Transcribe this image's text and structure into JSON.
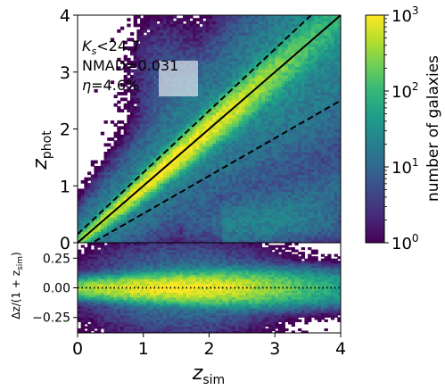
{
  "chart_data": [
    {
      "type": "heatmap",
      "panel": "top",
      "xlabel_main": "z",
      "xlabel_sub": "sim",
      "ylabel_main": "z",
      "ylabel_sub": "phot",
      "xlim": [
        0,
        4
      ],
      "ylim": [
        0,
        4
      ],
      "xticks": [
        "0",
        "1",
        "2",
        "3",
        "4"
      ],
      "yticks": [
        "0",
        "1",
        "2",
        "3",
        "4"
      ],
      "grid": false,
      "annotations": {
        "line1_main": "K",
        "line1_sub": "s",
        "line1_rest": "<24.7",
        "line2": "NMAD=0.031",
        "line3_main": "η",
        "line3_rest": "=4.6%"
      },
      "reference_lines": [
        {
          "kind": "one-to-one",
          "style": "solid",
          "points": [
            [
              0,
              0
            ],
            [
              4,
              4
            ]
          ]
        },
        {
          "kind": "upper-outlier-bound",
          "style": "dashed",
          "points": [
            [
              0,
              0.15
            ],
            [
              3.55,
              4
            ]
          ]
        },
        {
          "kind": "lower-outlier-bound",
          "style": "dashed",
          "points": [
            [
              0,
              -0.15
            ],
            [
              4,
              2.5
            ]
          ]
        }
      ]
    },
    {
      "type": "heatmap",
      "panel": "bottom",
      "ylabel_main": "Δz/(1 + z",
      "ylabel_sub": "sim",
      "ylabel_end": ")",
      "xlim": [
        0,
        4
      ],
      "ylim": [
        -0.38,
        0.38
      ],
      "xticks": [
        "0",
        "1",
        "2",
        "3",
        "4"
      ],
      "yticks": [
        "0.25",
        "0.00",
        "−0.25"
      ],
      "ytick_values": [
        0.25,
        0.0,
        -0.25
      ],
      "reference_lines": [
        {
          "kind": "zero",
          "style": "dotted",
          "points": [
            [
              0,
              0
            ],
            [
              4,
              0
            ]
          ]
        }
      ]
    }
  ],
  "colorbar": {
    "label": "number of galaxies",
    "scale": "log",
    "range": [
      1,
      1000
    ],
    "ticks": [
      {
        "base": "10",
        "exp": "0",
        "value": 1
      },
      {
        "base": "10",
        "exp": "1",
        "value": 10
      },
      {
        "base": "10",
        "exp": "2",
        "value": 100
      },
      {
        "base": "10",
        "exp": "3",
        "value": 1000
      }
    ],
    "colormap": [
      "#440154",
      "#482878",
      "#3e4989",
      "#31688e",
      "#26828e",
      "#1f9e89",
      "#35b779",
      "#6ece58",
      "#b5de2b",
      "#fde725"
    ]
  }
}
